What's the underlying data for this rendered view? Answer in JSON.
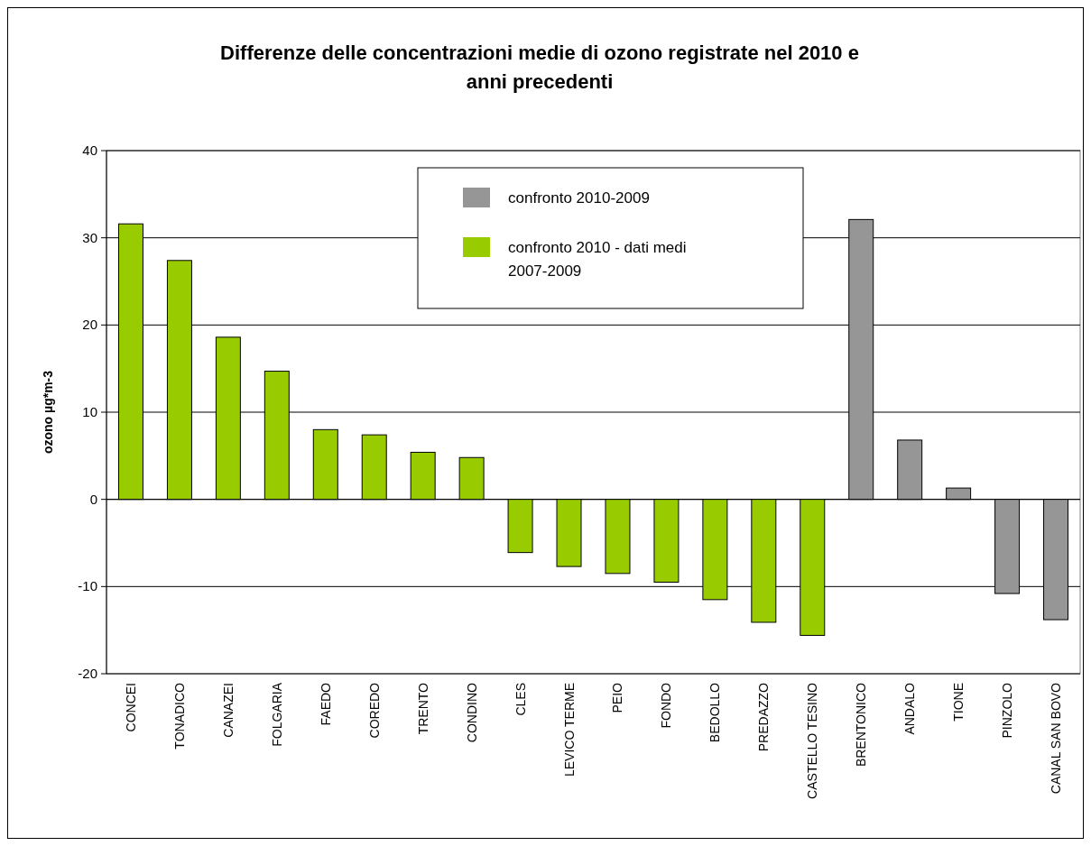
{
  "chart_data": {
    "type": "bar",
    "title": "Differenze delle concentrazioni medie di ozono registrate nel 2010 e anni precedenti",
    "ylabel": "ozono µg*m-3",
    "categories": [
      "CONCEI",
      "TONADICO",
      "CANAZEI",
      "FOLGARIA",
      "FAEDO",
      "COREDO",
      "TRENTO",
      "CONDINO",
      "CLES",
      "LEVICO TERME",
      "PEIO",
      "FONDO",
      "BEDOLLO",
      "PREDAZZO",
      "CASTELLO TESINO",
      "BRENTONICO",
      "ANDALO",
      "TIONE",
      "PINZOLO",
      "CANAL SAN BOVO"
    ],
    "series": [
      {
        "name": "confronto 2010-2009",
        "color": "#969696",
        "values": [
          null,
          null,
          null,
          null,
          null,
          null,
          null,
          null,
          null,
          null,
          null,
          null,
          null,
          null,
          null,
          32.1,
          6.8,
          1.3,
          -10.8,
          -13.8
        ]
      },
      {
        "name": "confronto 2010 - dati medi 2007-2009",
        "color": "#99cc00",
        "values": [
          31.6,
          27.4,
          18.6,
          14.7,
          8.0,
          7.4,
          5.4,
          4.8,
          -6.1,
          -7.7,
          -8.5,
          -9.5,
          -11.5,
          -14.1,
          -15.6,
          null,
          null,
          null,
          null,
          null
        ]
      }
    ],
    "ylim": [
      -20,
      40
    ],
    "yticks": [
      -20,
      -10,
      0,
      10,
      20,
      30,
      40
    ],
    "grid": "y",
    "legend": "top"
  }
}
